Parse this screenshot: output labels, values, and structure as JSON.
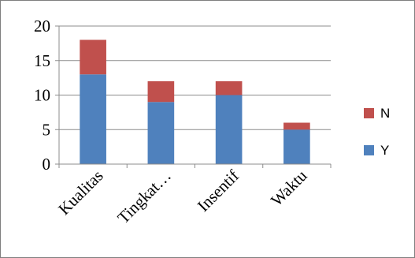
{
  "chart_data": {
    "type": "bar",
    "stacked": true,
    "categories": [
      "Kualitas",
      "Tingkat…",
      "Insentif",
      "Waktu"
    ],
    "series": [
      {
        "name": "Y",
        "values": [
          13,
          9,
          10,
          5
        ],
        "color": "#4f81bd"
      },
      {
        "name": "N",
        "values": [
          5,
          3,
          2,
          1
        ],
        "color": "#c0504d"
      }
    ],
    "ylim": [
      0,
      20
    ],
    "yticks": [
      0,
      5,
      10,
      15,
      20
    ],
    "grid": true,
    "legend_position": "right"
  }
}
